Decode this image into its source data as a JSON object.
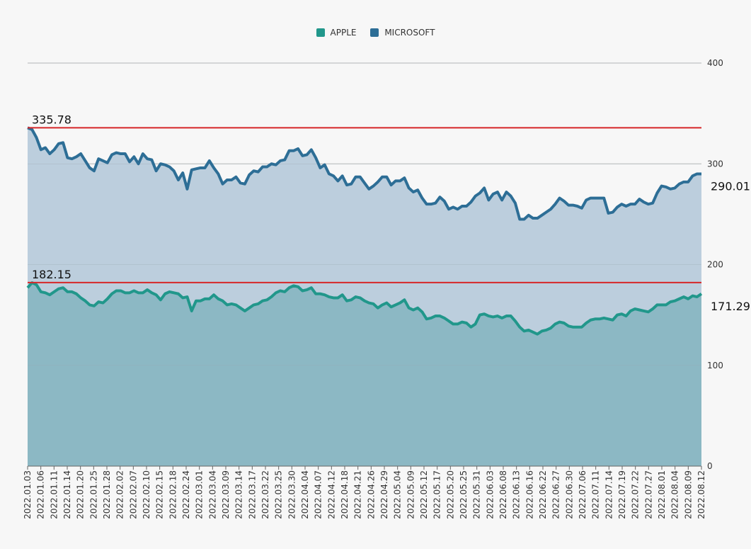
{
  "colors": {
    "background": "#f7f7f7",
    "grid": "#bbbbbb",
    "refline": "#d62728"
  },
  "chart_data": {
    "type": "area",
    "title": "",
    "legend_position": "top-center",
    "grid": true,
    "y_axis_side": "right",
    "ylim": [
      0,
      400
    ],
    "yticks": [
      "400",
      "300",
      "200",
      "100",
      "0"
    ],
    "x_tick_labels": [
      "2022.01.03",
      "2022.01.06",
      "2022.01.11",
      "2022.01.14",
      "2022.01.20",
      "2022.01.25",
      "2022.01.28",
      "2022.02.02",
      "2022.02.07",
      "2022.02.10",
      "2022.02.15",
      "2022.02.18",
      "2022.02.24",
      "2022.03.01",
      "2022.03.04",
      "2022.03.09",
      "2022.03.14",
      "2022.03.17",
      "2022.03.22",
      "2022.03.25",
      "2022.03.30",
      "2022.04.04",
      "2022.04.07",
      "2022.04.12",
      "2022.04.18",
      "2022.04.21",
      "2022.04.26",
      "2022.04.29",
      "2022.05.04",
      "2022.05.09",
      "2022.05.12",
      "2022.05.17",
      "2022.05.20",
      "2022.05.25",
      "2022.05.31",
      "2022.06.03",
      "2022.06.08",
      "2022.06.13",
      "2022.06.16",
      "2022.06.22",
      "2022.06.27",
      "2022.06.30",
      "2022.07.06",
      "2022.07.11",
      "2022.07.14",
      "2022.07.19",
      "2022.07.22",
      "2022.07.27",
      "2022.08.01",
      "2022.08.04",
      "2022.08.09",
      "2022.08.12"
    ],
    "series": [
      {
        "name": "APPLE",
        "color": "#21978b",
        "fill": "#8cb8c4",
        "values": [
          177,
          182,
          180,
          173,
          172,
          170,
          173,
          176,
          177,
          173,
          173,
          171,
          167,
          164,
          160,
          159,
          163,
          162,
          166,
          171,
          174,
          174,
          172,
          172,
          174,
          172,
          172,
          175,
          172,
          170,
          165,
          171,
          173,
          172,
          171,
          167,
          168,
          154,
          164,
          164,
          166,
          166,
          170,
          166,
          164,
          160,
          161,
          160,
          157,
          154,
          157,
          160,
          161,
          164,
          165,
          168,
          172,
          174,
          173,
          177,
          179,
          178,
          174,
          175,
          177,
          171,
          171,
          170,
          168,
          167,
          167,
          170,
          164,
          165,
          168,
          167,
          164,
          162,
          161,
          157,
          160,
          162,
          158,
          160,
          162,
          165,
          157,
          155,
          157,
          153,
          146,
          147,
          149,
          149,
          147,
          144,
          141,
          141,
          143,
          142,
          138,
          141,
          150,
          151,
          149,
          148,
          149,
          147,
          149,
          149,
          144,
          138,
          134,
          135,
          133,
          131,
          134,
          135,
          137,
          141,
          143,
          142,
          139,
          138,
          138,
          138,
          142,
          145,
          146,
          146,
          147,
          146,
          145,
          150,
          151,
          149,
          154,
          156,
          155,
          154,
          153,
          156,
          160,
          160,
          160,
          163,
          164,
          166,
          168,
          166,
          169,
          168,
          171
        ]
      },
      {
        "name": "MICROSOFT",
        "color": "#2d6e96",
        "fill": "#bccedd",
        "values": [
          335.78,
          334,
          326,
          314,
          316,
          310,
          314,
          320,
          321,
          306,
          305,
          307,
          310,
          303,
          296,
          293,
          305,
          303,
          301,
          309,
          311,
          310,
          310,
          302,
          307,
          300,
          310,
          305,
          304,
          293,
          300,
          299,
          297,
          293,
          284,
          291,
          275,
          294,
          295,
          296,
          296,
          303,
          296,
          290,
          280,
          284,
          284,
          287,
          281,
          280,
          289,
          293,
          292,
          297,
          297,
          300,
          299,
          303,
          304,
          313,
          313,
          315,
          308,
          309,
          314,
          306,
          296,
          299,
          290,
          288,
          283,
          288,
          279,
          280,
          287,
          287,
          281,
          275,
          278,
          282,
          287,
          287,
          279,
          283,
          283,
          286,
          276,
          272,
          274,
          266,
          260,
          260,
          261,
          267,
          263,
          255,
          257,
          255,
          258,
          258,
          262,
          268,
          271,
          276,
          264,
          270,
          272,
          264,
          272,
          268,
          261,
          245,
          245,
          249,
          246,
          246,
          249,
          252,
          255,
          260,
          266,
          263,
          259,
          259,
          258,
          256,
          264,
          266,
          266,
          266,
          266,
          251,
          252,
          257,
          260,
          258,
          260,
          260,
          265,
          262,
          260,
          261,
          271,
          278,
          277,
          275,
          276,
          280,
          282,
          282,
          288,
          290,
          290.01
        ]
      }
    ],
    "reference_lines": [
      {
        "value": 335.78,
        "label": "335.78"
      },
      {
        "value": 182.15,
        "label": "182.15"
      }
    ],
    "end_labels": [
      {
        "series": "MICROSOFT",
        "label": "290.01"
      },
      {
        "series": "APPLE",
        "label": "171.29"
      }
    ]
  }
}
